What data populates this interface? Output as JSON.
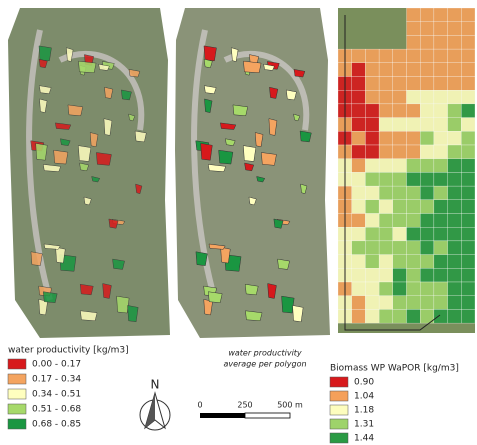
{
  "legend_left": {
    "title": "water productivity [kg/m3]",
    "items": [
      {
        "label": "0.00 - 0.17",
        "color": "#d7191c"
      },
      {
        "label": "0.17 - 0.34",
        "color": "#f4a460"
      },
      {
        "label": "0.34 - 0.51",
        "color": "#ffffbf"
      },
      {
        "label": "0.51 - 0.68",
        "color": "#a6d96a"
      },
      {
        "label": "0.68 - 0.85",
        "color": "#1a9641"
      }
    ]
  },
  "legend_middle": {
    "lines": [
      "water productivity",
      "average per polygon"
    ]
  },
  "north_arrow": {
    "label": "N"
  },
  "scale_bar": {
    "labels": [
      "0",
      "250",
      "500 m"
    ]
  },
  "legend_right": {
    "title": "Biomass WP WaPOR [kg/m3]",
    "items": [
      {
        "label": "0.90",
        "color": "#d7191c"
      },
      {
        "label": "1.04",
        "color": "#f5a05a"
      },
      {
        "label": "1.18",
        "color": "#fdfdbe"
      },
      {
        "label": "1.31",
        "color": "#9ed36a"
      },
      {
        "label": "1.44",
        "color": "#2a9a44"
      }
    ]
  }
}
